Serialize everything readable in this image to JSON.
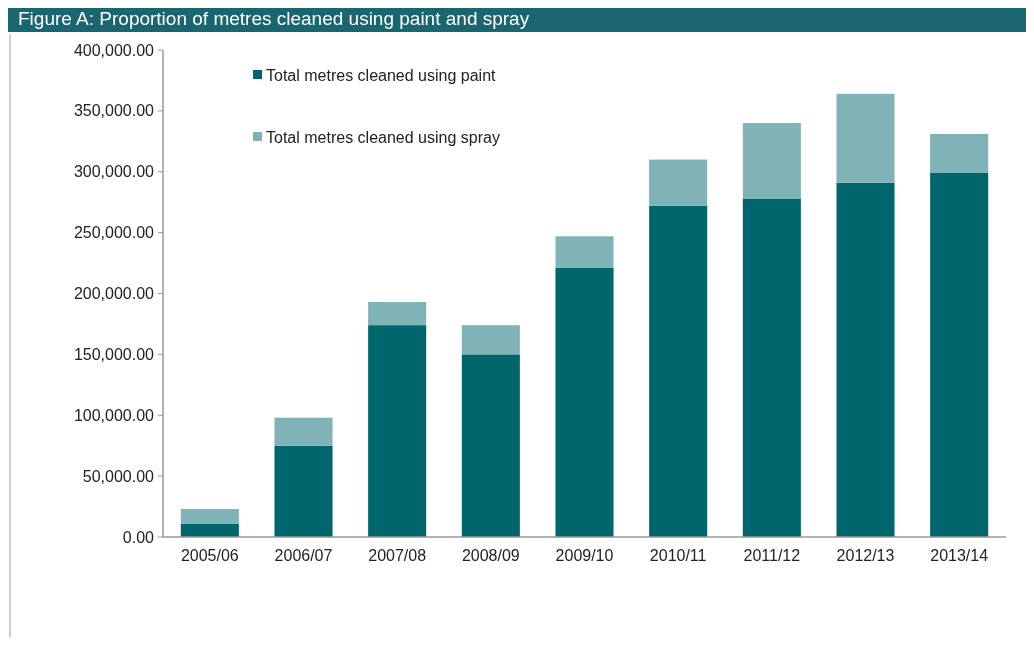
{
  "chart_data": {
    "type": "bar",
    "title": "Figure A: Proportion of metres cleaned using paint and spray",
    "stacked": true,
    "legend": "top left",
    "grid": false,
    "categories": [
      "2005/06",
      "2006/07",
      "2007/08",
      "2008/09",
      "2009/10",
      "2010/11",
      "2011/12",
      "2012/13",
      "2013/14"
    ],
    "series": [
      {
        "name": "Total metres cleaned using paint",
        "color": "#00666e",
        "values": [
          11000,
          75000,
          174000,
          150000,
          221000,
          272000,
          278000,
          291000,
          299000
        ]
      },
      {
        "name": "Total metres cleaned using spray",
        "color": "#80b3b7",
        "values": [
          12000,
          23000,
          19000,
          24000,
          26000,
          38000,
          62000,
          73000,
          32000
        ]
      }
    ],
    "ylim": [
      0,
      400000
    ],
    "yticks": [
      {
        "value": 0,
        "label": "0.00"
      },
      {
        "value": 50000,
        "label": "50,000.00"
      },
      {
        "value": 100000,
        "label": "100,000.00"
      },
      {
        "value": 150000,
        "label": "150,000.00"
      },
      {
        "value": 200000,
        "label": "200,000.00"
      },
      {
        "value": 250000,
        "label": "250,000.00"
      },
      {
        "value": 300000,
        "label": "300,000.00"
      },
      {
        "value": 350000,
        "label": "350,000.00"
      },
      {
        "value": 400000,
        "label": "400,000.00"
      }
    ]
  }
}
